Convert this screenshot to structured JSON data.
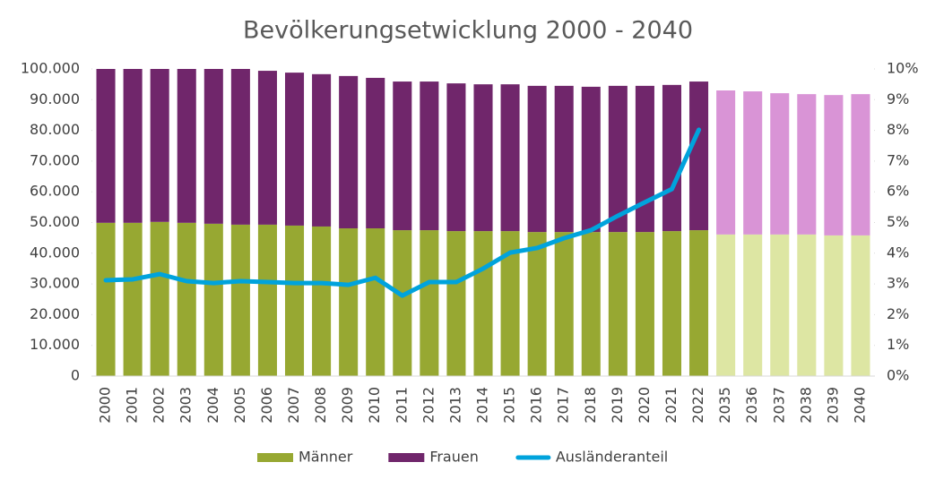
{
  "chart_data": {
    "type": "bar",
    "title": "Bevölkerungsetwicklung 2000 - 2040",
    "stacked": true,
    "categories": [
      "2000",
      "2001",
      "2002",
      "2003",
      "2004",
      "2005",
      "2006",
      "2007",
      "2008",
      "2009",
      "2010",
      "2011",
      "2012",
      "2013",
      "2014",
      "2015",
      "2016",
      "2017",
      "2018",
      "2019",
      "2020",
      "2021",
      "2022",
      "2035",
      "2036",
      "2037",
      "2038",
      "2039",
      "2040"
    ],
    "series": [
      {
        "name": "Männer",
        "color": "#97a832",
        "colors": [
          "#97a832",
          "#97a832",
          "#97a832",
          "#97a832",
          "#97a832",
          "#97a832",
          "#97a832",
          "#97a832",
          "#97a832",
          "#97a832",
          "#97a832",
          "#97a832",
          "#97a832",
          "#97a832",
          "#97a832",
          "#97a832",
          "#97a832",
          "#97a832",
          "#97a832",
          "#97a832",
          "#97a832",
          "#97a832",
          "#97a832",
          "#dde6a3",
          "#dde6a3",
          "#dde6a3",
          "#dde6a3",
          "#dde6a3",
          "#dde6a3"
        ],
        "values": [
          49900,
          49900,
          50200,
          49900,
          49600,
          49300,
          49300,
          49000,
          48700,
          48100,
          48100,
          47500,
          47500,
          47200,
          47200,
          47200,
          46900,
          46900,
          46900,
          46900,
          46900,
          47200,
          47500,
          46100,
          46100,
          46100,
          46100,
          45800,
          45800
        ]
      },
      {
        "name": "Frauen",
        "color": "#70266b",
        "colors": [
          "#70266b",
          "#70266b",
          "#70266b",
          "#70266b",
          "#70266b",
          "#70266b",
          "#70266b",
          "#70266b",
          "#70266b",
          "#70266b",
          "#70266b",
          "#70266b",
          "#70266b",
          "#70266b",
          "#70266b",
          "#70266b",
          "#70266b",
          "#70266b",
          "#70266b",
          "#70266b",
          "#70266b",
          "#70266b",
          "#70266b",
          "#d994d6",
          "#d994d6",
          "#d994d6",
          "#d994d6",
          "#d994d6",
          "#d994d6"
        ],
        "values": [
          50100,
          50100,
          49800,
          50100,
          50400,
          50700,
          50100,
          49800,
          49600,
          49600,
          49000,
          48400,
          48400,
          48100,
          47800,
          47800,
          47600,
          47600,
          47300,
          47600,
          47600,
          47600,
          48400,
          46900,
          46600,
          46000,
          45700,
          45700,
          46000
        ]
      },
      {
        "name": "Ausländeranteil",
        "type": "line",
        "axis": "y2",
        "color": "#00a3dc",
        "values": [
          3.12,
          3.15,
          3.32,
          3.09,
          3.03,
          3.09,
          3.06,
          3.03,
          3.03,
          2.97,
          3.2,
          2.62,
          3.06,
          3.06,
          3.5,
          4.02,
          4.17,
          4.49,
          4.75,
          5.22,
          5.66,
          6.09,
          8.02,
          null,
          null,
          null,
          null,
          null,
          null
        ]
      }
    ],
    "ylim": [
      0,
      100000
    ],
    "yticks": [
      0,
      {
        "value": 10000,
        "label": "10.000"
      },
      {
        "value": 20000,
        "label": "20.000"
      },
      {
        "value": 30000,
        "label": "30.000"
      },
      {
        "value": 40000,
        "label": "40.000"
      },
      {
        "value": 50000,
        "label": "50.000"
      },
      {
        "value": 60000,
        "label": "60.000"
      },
      {
        "value": 70000,
        "label": "70.000"
      },
      {
        "value": 80000,
        "label": "80.000"
      },
      {
        "value": 90000,
        "label": "90.000"
      },
      {
        "value": 100000,
        "label": "100.000"
      }
    ],
    "y2lim": [
      0,
      10
    ],
    "y2ticks": [
      {
        "value": 0,
        "label": "0%"
      },
      {
        "value": 1,
        "label": "1%"
      },
      {
        "value": 2,
        "label": "2%"
      },
      {
        "value": 3,
        "label": "3%"
      },
      {
        "value": 4,
        "label": "4%"
      },
      {
        "value": 5,
        "label": "5%"
      },
      {
        "value": 6,
        "label": "6%"
      },
      {
        "value": 7,
        "label": "7%"
      },
      {
        "value": 8,
        "label": "8%"
      },
      {
        "value": 9,
        "label": "9%"
      },
      {
        "value": 10,
        "label": "10%"
      }
    ],
    "legend": "bottom"
  }
}
